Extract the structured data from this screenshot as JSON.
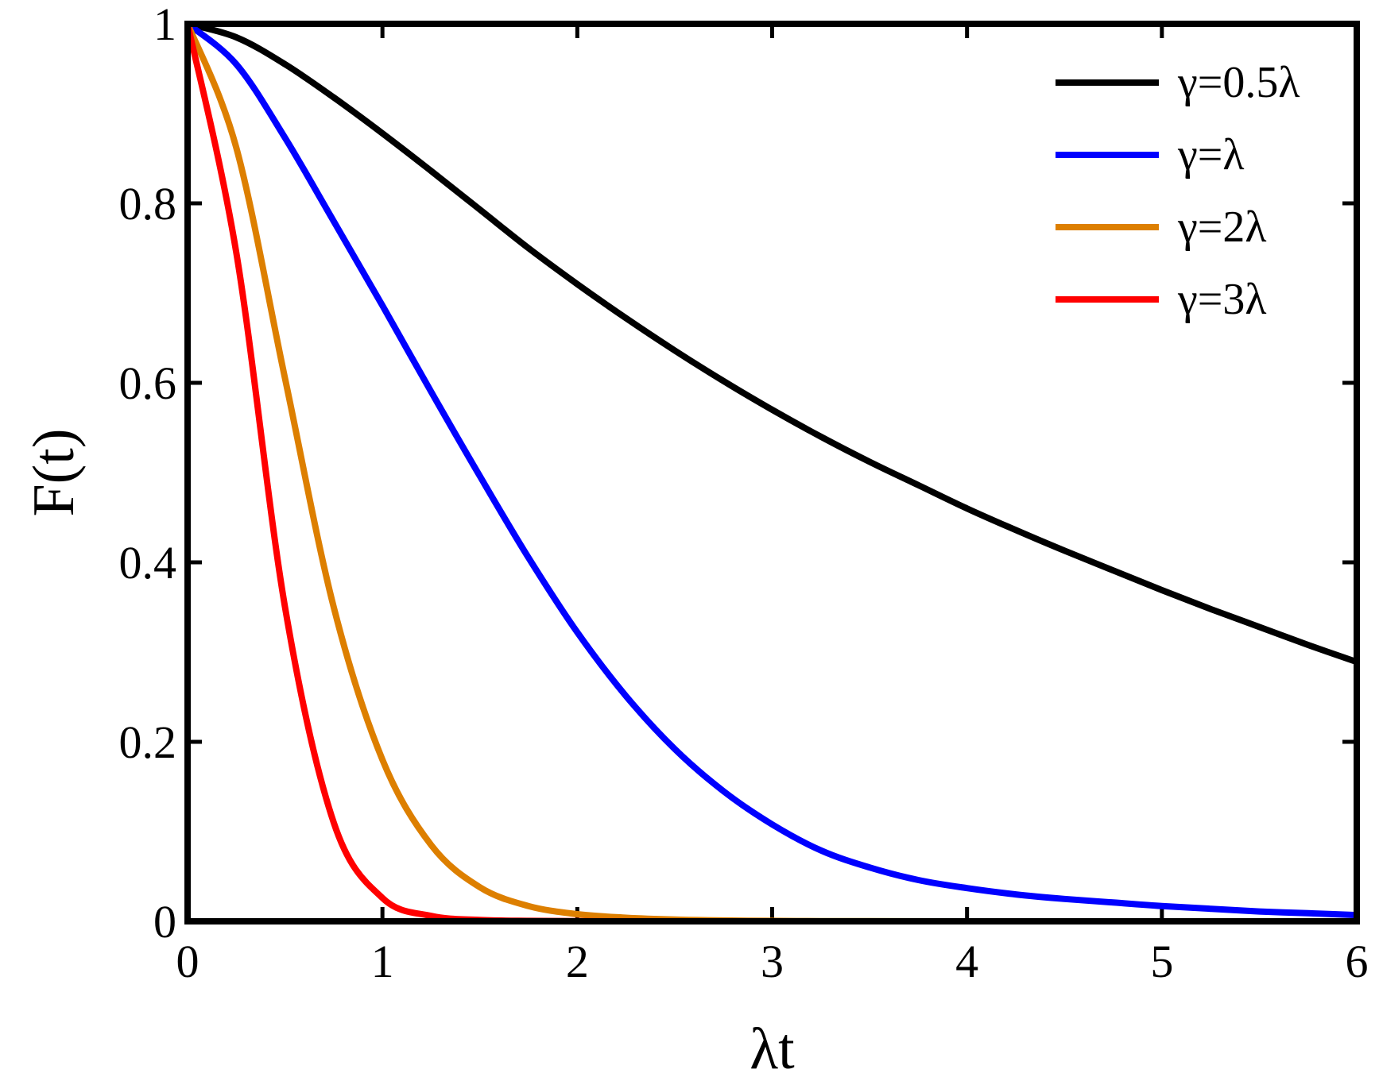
{
  "chart_data": {
    "type": "line",
    "xlabel": "λt",
    "ylabel": "F(t)",
    "xlim": [
      0,
      6
    ],
    "ylim": [
      0,
      1
    ],
    "x_ticks": [
      "0",
      "1",
      "2",
      "3",
      "4",
      "5",
      "6"
    ],
    "y_ticks": [
      "0",
      "0.2",
      "0.4",
      "0.6",
      "0.8",
      "1"
    ],
    "grid": false,
    "legend_position": "top-right",
    "x": [
      0,
      0.25,
      0.5,
      0.75,
      1,
      1.25,
      1.5,
      1.75,
      2,
      2.25,
      2.5,
      2.75,
      3,
      3.25,
      3.5,
      3.75,
      4,
      4.25,
      4.5,
      4.75,
      5,
      5.25,
      5.5,
      5.75,
      6
    ],
    "series": [
      {
        "name": "γ=0.5λ",
        "color": "#000000",
        "values": [
          1.0,
          0.985,
          0.955,
          0.918,
          0.878,
          0.836,
          0.793,
          0.75,
          0.71,
          0.672,
          0.636,
          0.602,
          0.57,
          0.54,
          0.512,
          0.486,
          0.46,
          0.436,
          0.413,
          0.391,
          0.369,
          0.348,
          0.328,
          0.308,
          0.289
        ]
      },
      {
        "name": "γ=λ",
        "color": "#0000ff",
        "values": [
          1.0,
          0.955,
          0.873,
          0.78,
          0.686,
          0.59,
          0.496,
          0.405,
          0.322,
          0.251,
          0.192,
          0.145,
          0.108,
          0.079,
          0.06,
          0.046,
          0.037,
          0.03,
          0.025,
          0.021,
          0.017,
          0.014,
          0.011,
          0.009,
          0.007
        ]
      },
      {
        "name": "γ=2λ",
        "color": "#dd7f00",
        "values": [
          1.0,
          0.862,
          0.605,
          0.35,
          0.18,
          0.085,
          0.038,
          0.017,
          0.008,
          0.004,
          0.002,
          0.001,
          0.0005,
          0.0003,
          0.0002,
          0.0001,
          0,
          0,
          0,
          0,
          0,
          0,
          0,
          0,
          0
        ]
      },
      {
        "name": "γ=3λ",
        "color": "#ff0000",
        "values": [
          1.0,
          0.745,
          0.35,
          0.11,
          0.026,
          0.006,
          0.0015,
          0.0005,
          0.0002,
          0.0001,
          0,
          0,
          0,
          0,
          0,
          0,
          0,
          0,
          0,
          0,
          0,
          0,
          0,
          0,
          0
        ]
      }
    ]
  }
}
